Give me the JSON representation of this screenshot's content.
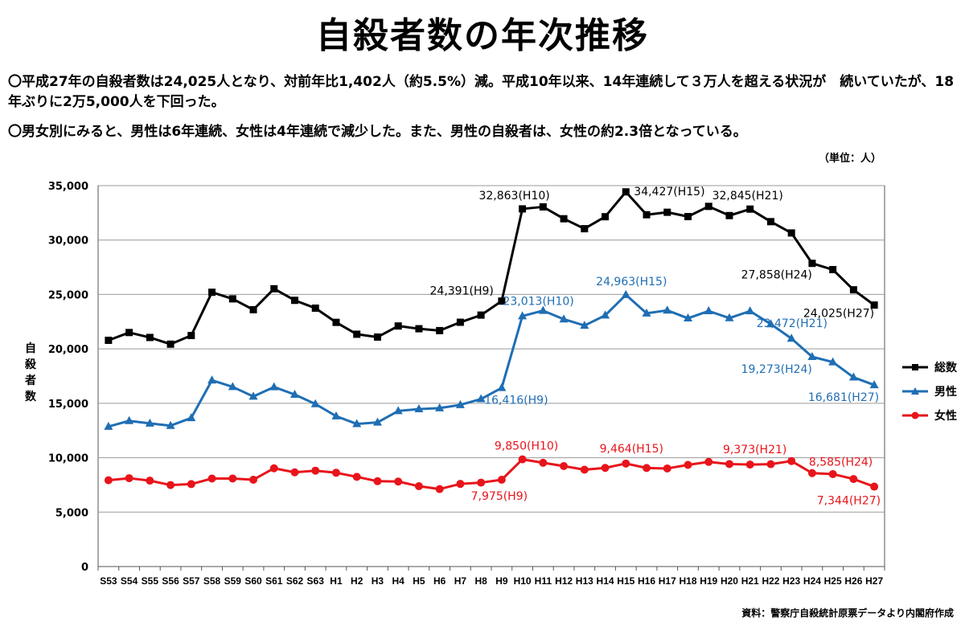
{
  "title": "自殺者数の年次推移",
  "bullets": [
    "〇平成27年の自殺者数は24,025人となり、対前年比1,402人（約5.5%）減。平成10年以来、14年連続して３万人を超える状況が　続いていたが、18年ぶりに2万5,000人を下回った。",
    "〇男女別にみると、男性は6年連続、女性は4年連続で減少した。また、男性の自殺者は、女性の約2.3倍となっている。"
  ],
  "unit": "（単位：人）",
  "source": "資料：警察庁自殺統計原票データより内閣府作成",
  "colors": {
    "total": "#000000",
    "male": "#1F6EB4",
    "female": "#E8141B",
    "grid": "#9a9a9a"
  },
  "chart_data": {
    "type": "line",
    "ylabel": "自殺者数",
    "ylim": [
      0,
      35000
    ],
    "yticks": [
      "0",
      "5,000",
      "10,000",
      "15,000",
      "20,000",
      "25,000",
      "30,000",
      "35,000"
    ],
    "ytick_values": [
      0,
      5000,
      10000,
      15000,
      20000,
      25000,
      30000,
      35000
    ],
    "categories": [
      "S53",
      "S54",
      "S55",
      "S56",
      "S57",
      "S58",
      "S59",
      "S60",
      "S61",
      "S62",
      "S63",
      "H1",
      "H2",
      "H3",
      "H4",
      "H5",
      "H6",
      "H7",
      "H8",
      "H9",
      "H10",
      "H11",
      "H12",
      "H13",
      "H14",
      "H15",
      "H16",
      "H17",
      "H18",
      "H19",
      "H20",
      "H21",
      "H22",
      "H23",
      "H24",
      "H25",
      "H26",
      "H27"
    ],
    "series": [
      {
        "name": "総数",
        "key": "total",
        "marker": "square",
        "values": [
          20788,
          21503,
          21048,
          20434,
          21228,
          25202,
          24596,
          23599,
          25524,
          24460,
          23742,
          22436,
          21346,
          21084,
          22104,
          21851,
          21679,
          22445,
          23104,
          24391,
          32863,
          33048,
          31957,
          31042,
          32143,
          34427,
          32325,
          32552,
          32155,
          33093,
          32249,
          32845,
          31690,
          30651,
          27858,
          27283,
          25427,
          24025
        ]
      },
      {
        "name": "男性",
        "key": "male",
        "marker": "triangle",
        "values": [
          12859,
          13386,
          13155,
          12944,
          13654,
          17116,
          16508,
          15624,
          16497,
          15802,
          14934,
          13818,
          13102,
          13242,
          14296,
          14468,
          14560,
          14853,
          15393,
          16416,
          23013,
          23512,
          22727,
          22144,
          23080,
          24963,
          23272,
          23540,
          22813,
          23478,
          22831,
          23472,
          22283,
          20955,
          19273,
          18787,
          17386,
          16681
        ]
      },
      {
        "name": "女性",
        "key": "female",
        "marker": "circle",
        "values": [
          7929,
          8117,
          7893,
          7490,
          7574,
          8086,
          8088,
          7975,
          9027,
          8658,
          8808,
          8618,
          8244,
          7842,
          7808,
          7383,
          7119,
          7592,
          7711,
          7975,
          9850,
          9536,
          9230,
          8898,
          9063,
          9464,
          9053,
          9012,
          9342,
          9615,
          9418,
          9373,
          9407,
          9696,
          8585,
          8496,
          8041,
          7344
        ]
      }
    ],
    "annotations": [
      {
        "series": "total",
        "index": 19,
        "text": "24,391(H9)",
        "anchor": "end",
        "dx": -10,
        "dy": -8
      },
      {
        "series": "total",
        "index": 20,
        "text": "32,863(H10)",
        "anchor": "middle",
        "dx": -10,
        "dy": -12
      },
      {
        "series": "total",
        "index": 25,
        "text": "34,427(H15)",
        "anchor": "start",
        "dx": 10,
        "dy": 4
      },
      {
        "series": "total",
        "index": 31,
        "text": "32,845(H21)",
        "anchor": "middle",
        "dx": -3,
        "dy": -12
      },
      {
        "series": "total",
        "index": 34,
        "text": "27,858(H24)",
        "anchor": "end",
        "dx": 0,
        "dy": 19
      },
      {
        "series": "total",
        "index": 37,
        "text": "24,025(H27)",
        "anchor": "end",
        "dx": 0,
        "dy": 15
      },
      {
        "series": "male",
        "index": 19,
        "text": "16,416(H9)",
        "anchor": "middle",
        "dx": 18,
        "dy": 20
      },
      {
        "series": "male",
        "index": 20,
        "text": "23,013(H10)",
        "anchor": "middle",
        "dx": 20,
        "dy": -14
      },
      {
        "series": "male",
        "index": 25,
        "text": "24,963(H15)",
        "anchor": "middle",
        "dx": 7,
        "dy": -12
      },
      {
        "series": "male",
        "index": 31,
        "text": "23,472(H21)",
        "anchor": "start",
        "dx": 8,
        "dy": 20
      },
      {
        "series": "male",
        "index": 34,
        "text": "19,273(H24)",
        "anchor": "end",
        "dx": 0,
        "dy": 20
      },
      {
        "series": "male",
        "index": 37,
        "text": "16,681(H27)",
        "anchor": "end",
        "dx": 6,
        "dy": 20
      },
      {
        "series": "female",
        "index": 19,
        "text": "7,975(H9)",
        "anchor": "middle",
        "dx": -3,
        "dy": 25
      },
      {
        "series": "female",
        "index": 20,
        "text": "9,850(H10)",
        "anchor": "middle",
        "dx": 5,
        "dy": -12
      },
      {
        "series": "female",
        "index": 25,
        "text": "9,464(H15)",
        "anchor": "middle",
        "dx": 7,
        "dy": -14
      },
      {
        "series": "female",
        "index": 31,
        "text": "9,373(H21)",
        "anchor": "middle",
        "dx": 6,
        "dy": -14
      },
      {
        "series": "female",
        "index": 34,
        "text": "8,585(H24)",
        "anchor": "start",
        "dx": -4,
        "dy": -9
      },
      {
        "series": "female",
        "index": 37,
        "text": "7,344(H27)",
        "anchor": "end",
        "dx": 8,
        "dy": 22
      }
    ],
    "legend": [
      {
        "key": "total",
        "label": "総数"
      },
      {
        "key": "male",
        "label": "男性"
      },
      {
        "key": "female",
        "label": "女性"
      }
    ],
    "legend_position": "right"
  }
}
